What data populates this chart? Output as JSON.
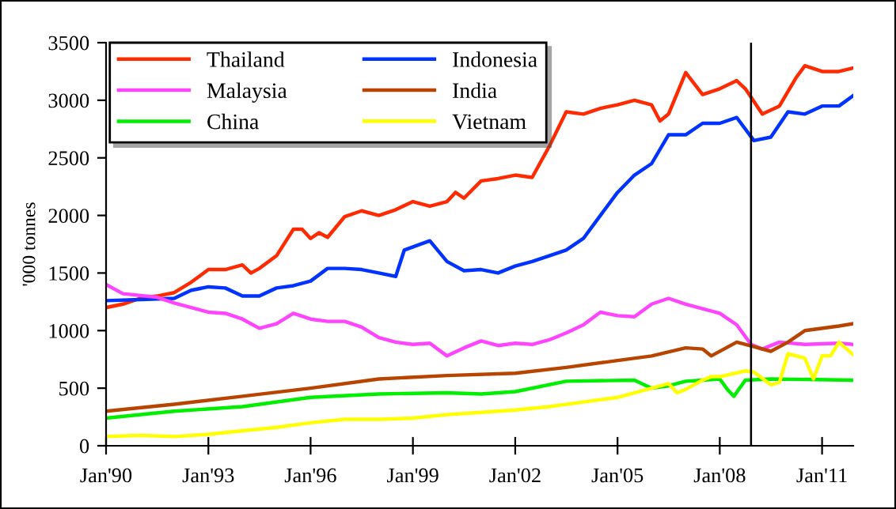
{
  "chart_data": {
    "type": "line",
    "ylabel": "'000 tonnes",
    "xlim": [
      "1990-01",
      "2011-12"
    ],
    "xticks": [
      {
        "value": "1990-01",
        "label": "Jan'90"
      },
      {
        "value": "1993-01",
        "label": "Jan'93"
      },
      {
        "value": "1996-01",
        "label": "Jan'96"
      },
      {
        "value": "1999-01",
        "label": "Jan'99"
      },
      {
        "value": "2002-01",
        "label": "Jan'02"
      },
      {
        "value": "2005-01",
        "label": "Jan'05"
      },
      {
        "value": "2008-01",
        "label": "Jan'08"
      },
      {
        "value": "2011-01",
        "label": "Jan'11"
      }
    ],
    "ylim": [
      0,
      3500
    ],
    "yticks": [
      0,
      500,
      1000,
      1500,
      2000,
      2500,
      3000,
      3500
    ],
    "grid": false,
    "legend": "top left",
    "marker": "none",
    "line_style": "solid",
    "ref_lines": [
      {
        "axis": "x",
        "value": "2008-12",
        "label": null,
        "color": "#000000"
      }
    ],
    "series": [
      {
        "name": "Thailand",
        "color": "#ff2a00",
        "x": [
          "1990-01",
          "1990-07",
          "1991-01",
          "1991-07",
          "1992-01",
          "1992-07",
          "1993-01",
          "1993-07",
          "1994-01",
          "1994-04",
          "1994-07",
          "1995-01",
          "1995-07",
          "1995-10",
          "1996-01",
          "1996-04",
          "1996-07",
          "1997-01",
          "1997-07",
          "1998-01",
          "1998-07",
          "1999-01",
          "1999-07",
          "2000-01",
          "2000-04",
          "2000-07",
          "2001-01",
          "2001-07",
          "2002-01",
          "2002-07",
          "2003-01",
          "2003-07",
          "2004-01",
          "2004-07",
          "2005-01",
          "2005-07",
          "2006-01",
          "2006-04",
          "2006-07",
          "2007-01",
          "2007-07",
          "2008-01",
          "2008-07",
          "2008-10",
          "2009-04",
          "2009-10",
          "2010-04",
          "2010-07",
          "2011-01",
          "2011-07",
          "2011-12"
        ],
        "values": [
          1200,
          1230,
          1280,
          1300,
          1330,
          1420,
          1530,
          1530,
          1570,
          1500,
          1540,
          1650,
          1880,
          1880,
          1800,
          1850,
          1810,
          1990,
          2040,
          2000,
          2050,
          2120,
          2080,
          2120,
          2200,
          2150,
          2300,
          2320,
          2350,
          2330,
          2600,
          2900,
          2880,
          2930,
          2960,
          3000,
          2960,
          2820,
          2880,
          3240,
          3050,
          3100,
          3170,
          3100,
          2880,
          2950,
          3200,
          3300,
          3250,
          3250,
          3280
        ]
      },
      {
        "name": "Indonesia",
        "color": "#0033ff",
        "x": [
          "1990-01",
          "1991-01",
          "1992-01",
          "1992-07",
          "1993-01",
          "1993-07",
          "1994-01",
          "1994-07",
          "1995-01",
          "1995-07",
          "1996-01",
          "1996-07",
          "1997-01",
          "1997-07",
          "1998-01",
          "1998-07",
          "1998-10",
          "1999-07",
          "2000-01",
          "2000-07",
          "2001-01",
          "2001-07",
          "2002-01",
          "2002-07",
          "2003-01",
          "2003-07",
          "2004-01",
          "2004-07",
          "2005-01",
          "2005-07",
          "2006-01",
          "2006-07",
          "2007-01",
          "2007-07",
          "2008-01",
          "2008-07",
          "2009-01",
          "2009-07",
          "2010-01",
          "2010-07",
          "2011-01",
          "2011-07",
          "2011-12"
        ],
        "values": [
          1260,
          1270,
          1280,
          1350,
          1380,
          1370,
          1300,
          1300,
          1370,
          1390,
          1430,
          1540,
          1540,
          1530,
          1500,
          1470,
          1700,
          1780,
          1600,
          1520,
          1530,
          1500,
          1560,
          1600,
          1650,
          1700,
          1800,
          2000,
          2200,
          2350,
          2450,
          2700,
          2700,
          2800,
          2800,
          2850,
          2650,
          2680,
          2900,
          2880,
          2950,
          2950,
          3040
        ]
      },
      {
        "name": "Malaysia",
        "color": "#ff44ff",
        "x": [
          "1990-01",
          "1990-07",
          "1991-07",
          "1992-01",
          "1992-07",
          "1993-01",
          "1993-07",
          "1994-01",
          "1994-07",
          "1995-01",
          "1995-07",
          "1996-01",
          "1996-07",
          "1997-01",
          "1997-07",
          "1998-01",
          "1998-07",
          "1999-01",
          "1999-07",
          "2000-01",
          "2000-07",
          "2001-01",
          "2001-07",
          "2002-01",
          "2002-07",
          "2003-01",
          "2003-07",
          "2004-01",
          "2004-07",
          "2005-01",
          "2005-07",
          "2006-01",
          "2006-07",
          "2007-01",
          "2007-07",
          "2008-01",
          "2008-07",
          "2008-12",
          "2009-04",
          "2009-10",
          "2010-07",
          "2011-07",
          "2011-12"
        ],
        "values": [
          1400,
          1320,
          1290,
          1240,
          1200,
          1160,
          1150,
          1100,
          1020,
          1060,
          1150,
          1100,
          1080,
          1080,
          1030,
          940,
          900,
          880,
          890,
          780,
          850,
          910,
          870,
          890,
          880,
          920,
          980,
          1050,
          1160,
          1130,
          1120,
          1230,
          1280,
          1230,
          1190,
          1150,
          1050,
          880,
          840,
          900,
          880,
          890,
          880
        ]
      },
      {
        "name": "India",
        "color": "#b84400",
        "x": [
          "1990-01",
          "1992-01",
          "1994-01",
          "1996-01",
          "1998-01",
          "2000-01",
          "2002-01",
          "2003-07",
          "2005-01",
          "2006-01",
          "2007-01",
          "2007-07",
          "2007-10",
          "2008-07",
          "2009-01",
          "2009-07",
          "2010-01",
          "2010-07",
          "2011-07",
          "2011-12"
        ],
        "values": [
          300,
          360,
          430,
          500,
          580,
          610,
          630,
          680,
          740,
          780,
          850,
          840,
          780,
          900,
          860,
          820,
          900,
          1000,
          1040,
          1060
        ]
      },
      {
        "name": "China",
        "color": "#00ee00",
        "x": [
          "1990-01",
          "1992-01",
          "1994-01",
          "1996-01",
          "1998-01",
          "2000-01",
          "2001-01",
          "2002-01",
          "2003-07",
          "2005-07",
          "2006-01",
          "2006-07",
          "2007-01",
          "2007-07",
          "2008-01",
          "2008-04",
          "2008-06",
          "2008-10",
          "2009-07",
          "2011-12"
        ],
        "values": [
          240,
          300,
          340,
          420,
          450,
          460,
          450,
          470,
          560,
          570,
          500,
          520,
          560,
          570,
          580,
          480,
          430,
          570,
          580,
          570
        ]
      },
      {
        "name": "Vietnam",
        "color": "#ffff00",
        "x": [
          "1990-01",
          "1991-01",
          "1992-01",
          "1993-01",
          "1994-01",
          "1995-01",
          "1996-01",
          "1997-01",
          "1998-01",
          "1999-01",
          "2000-01",
          "2001-01",
          "2002-01",
          "2003-01",
          "2004-01",
          "2005-01",
          "2006-01",
          "2006-07",
          "2006-10",
          "2007-01",
          "2007-07",
          "2007-10",
          "2008-01",
          "2008-10",
          "2009-01",
          "2009-07",
          "2009-10",
          "2010-01",
          "2010-07",
          "2010-10",
          "2011-01",
          "2011-04",
          "2011-07",
          "2011-12"
        ],
        "values": [
          80,
          90,
          80,
          100,
          130,
          160,
          200,
          230,
          230,
          240,
          270,
          290,
          310,
          340,
          380,
          420,
          500,
          540,
          460,
          490,
          570,
          600,
          600,
          650,
          640,
          530,
          550,
          800,
          760,
          580,
          780,
          780,
          900,
          790
        ]
      }
    ]
  }
}
